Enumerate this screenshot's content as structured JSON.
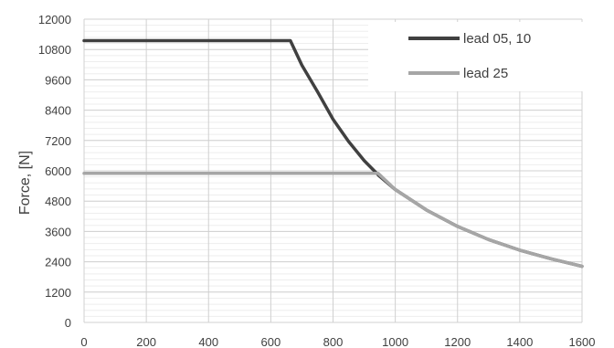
{
  "chart_data": {
    "type": "line",
    "title": "",
    "xlabel": "",
    "ylabel": "Force, [N]",
    "xlim": [
      0,
      1600
    ],
    "ylim": [
      0,
      12000
    ],
    "x_ticks": [
      0,
      200,
      400,
      600,
      800,
      1000,
      1200,
      1400,
      1600
    ],
    "y_ticks": [
      0,
      1200,
      2400,
      3600,
      4800,
      6000,
      7200,
      8400,
      9600,
      10800,
      12000
    ],
    "grid": true,
    "legend_position": "top-right",
    "series": [
      {
        "name": "lead 05, 10",
        "color": "#404040",
        "x": [
          0,
          663,
          700,
          750,
          800,
          850,
          900,
          950,
          1000,
          1100,
          1200,
          1300,
          1400,
          1500,
          1600
        ],
        "y": [
          11150,
          11150,
          10180,
          9130,
          8040,
          7160,
          6400,
          5780,
          5260,
          4450,
          3800,
          3280,
          2860,
          2520,
          2220
        ]
      },
      {
        "name": "lead 25",
        "color": "#a6a6a6",
        "x": [
          0,
          945,
          1000,
          1100,
          1200,
          1300,
          1400,
          1500,
          1600
        ],
        "y": [
          5900,
          5900,
          5260,
          4450,
          3800,
          3280,
          2860,
          2520,
          2220
        ]
      }
    ]
  }
}
